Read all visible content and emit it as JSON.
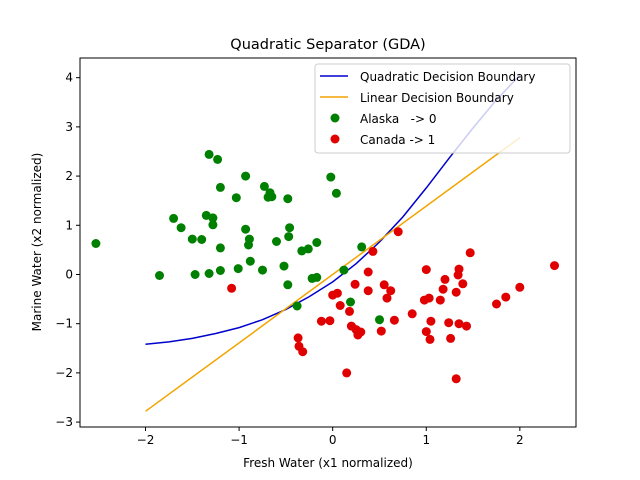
{
  "chart_data": {
    "type": "scatter",
    "title": "Quadratic Separator (GDA)",
    "xlabel": "Fresh Water (x1 normalized)",
    "ylabel": "Marine Water (x2 normalized)",
    "xlim": [
      -2.7,
      2.6
    ],
    "ylim": [
      -3.1,
      4.4
    ],
    "xticks": [
      -2,
      -1,
      0,
      1,
      2
    ],
    "yticks": [
      -3,
      -2,
      -1,
      0,
      1,
      2,
      3,
      4
    ],
    "grid": false,
    "legend_position": "top-right",
    "lines": [
      {
        "name": "Quadratic Decision Boundary",
        "color": "#0000cc",
        "x": [
          -2.0,
          -1.75,
          -1.5,
          -1.25,
          -1.0,
          -0.75,
          -0.5,
          -0.25,
          0.0,
          0.25,
          0.5,
          0.75,
          1.0,
          1.25,
          1.5,
          1.75,
          2.0
        ],
        "y": [
          -1.42,
          -1.37,
          -1.3,
          -1.2,
          -1.08,
          -0.92,
          -0.71,
          -0.45,
          -0.15,
          0.22,
          0.66,
          1.17,
          1.76,
          2.38,
          2.98,
          3.55,
          4.05
        ]
      },
      {
        "name": "Linear Decision Boundary",
        "color": "#f2a400",
        "x": [
          -2.0,
          2.0
        ],
        "y": [
          -2.78,
          2.78
        ]
      }
    ],
    "series": [
      {
        "name": "Alaska   -> 0",
        "color": "#008000",
        "points": [
          [
            -2.53,
            0.63
          ],
          [
            -1.85,
            -0.02
          ],
          [
            -1.7,
            1.14
          ],
          [
            -1.62,
            0.95
          ],
          [
            -1.5,
            0.72
          ],
          [
            -1.47,
            0.0
          ],
          [
            -1.4,
            0.71
          ],
          [
            -1.35,
            1.2
          ],
          [
            -1.32,
            0.02
          ],
          [
            -1.28,
            1.15
          ],
          [
            -1.28,
            1.01
          ],
          [
            -1.2,
            0.54
          ],
          [
            -1.2,
            0.08
          ],
          [
            -1.2,
            1.77
          ],
          [
            -1.23,
            2.34
          ],
          [
            -1.32,
            2.44
          ],
          [
            -1.03,
            1.56
          ],
          [
            -1.01,
            0.12
          ],
          [
            -0.93,
            2.0
          ],
          [
            -0.93,
            0.92
          ],
          [
            -0.9,
            0.6
          ],
          [
            -0.89,
            0.72
          ],
          [
            -0.88,
            0.27
          ],
          [
            -0.75,
            0.09
          ],
          [
            -0.73,
            1.79
          ],
          [
            -0.67,
            1.66
          ],
          [
            -0.65,
            1.58
          ],
          [
            -0.69,
            1.57
          ],
          [
            -0.6,
            0.67
          ],
          [
            -0.52,
            0.17
          ],
          [
            -0.48,
            1.54
          ],
          [
            -0.47,
            0.77
          ],
          [
            -0.46,
            0.95
          ],
          [
            -0.48,
            -0.21
          ],
          [
            -0.38,
            -0.64
          ],
          [
            -0.33,
            0.48
          ],
          [
            -0.26,
            0.52
          ],
          [
            -0.22,
            -0.08
          ],
          [
            -0.17,
            -0.06
          ],
          [
            -0.17,
            0.65
          ],
          [
            -0.02,
            1.98
          ],
          [
            0.04,
            1.65
          ],
          [
            0.12,
            0.09
          ],
          [
            0.19,
            -0.56
          ],
          [
            0.31,
            0.56
          ],
          [
            0.5,
            -0.92
          ]
        ]
      },
      {
        "name": "Canada -> 1",
        "color": "#e00000",
        "points": [
          [
            -1.08,
            -0.28
          ],
          [
            -0.37,
            -1.29
          ],
          [
            -0.36,
            -1.46
          ],
          [
            -0.32,
            -1.57
          ],
          [
            -0.12,
            -0.95
          ],
          [
            -0.03,
            -0.94
          ],
          [
            0.0,
            -0.42
          ],
          [
            0.05,
            -0.38
          ],
          [
            0.08,
            -0.63
          ],
          [
            0.15,
            -2.0
          ],
          [
            0.18,
            -0.75
          ],
          [
            0.2,
            -1.05
          ],
          [
            0.24,
            -0.2
          ],
          [
            0.25,
            -1.12
          ],
          [
            0.27,
            -1.23
          ],
          [
            0.3,
            -1.17
          ],
          [
            0.38,
            0.05
          ],
          [
            0.38,
            -0.33
          ],
          [
            0.43,
            0.47
          ],
          [
            0.52,
            -1.15
          ],
          [
            0.55,
            -0.21
          ],
          [
            0.58,
            -0.48
          ],
          [
            0.62,
            -0.33
          ],
          [
            0.66,
            -0.93
          ],
          [
            0.7,
            0.87
          ],
          [
            0.85,
            -0.8
          ],
          [
            0.98,
            -0.52
          ],
          [
            1.0,
            -1.16
          ],
          [
            1.0,
            0.1
          ],
          [
            1.03,
            -0.48
          ],
          [
            1.04,
            -1.32
          ],
          [
            1.05,
            -0.95
          ],
          [
            1.15,
            -0.52
          ],
          [
            1.18,
            -0.3
          ],
          [
            1.2,
            -0.1
          ],
          [
            1.24,
            -0.98
          ],
          [
            1.26,
            -1.3
          ],
          [
            1.32,
            -2.12
          ],
          [
            1.32,
            -0.36
          ],
          [
            1.34,
            -0.01
          ],
          [
            1.35,
            0.11
          ],
          [
            1.35,
            -1.0
          ],
          [
            1.39,
            -0.19
          ],
          [
            1.43,
            -1.05
          ],
          [
            1.47,
            0.44
          ],
          [
            1.75,
            -0.6
          ],
          [
            1.85,
            -0.46
          ],
          [
            2.0,
            -0.26
          ],
          [
            2.37,
            0.18
          ]
        ]
      }
    ]
  }
}
